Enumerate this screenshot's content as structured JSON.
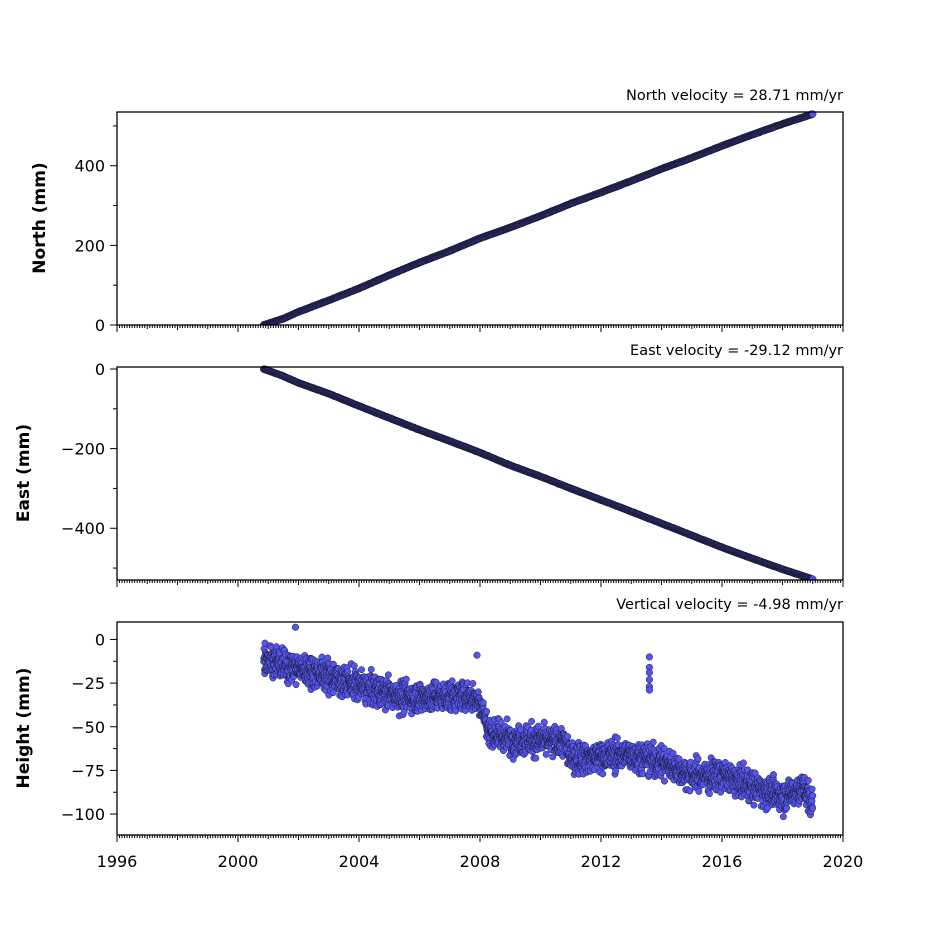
{
  "chart_data": [
    {
      "type": "scatter",
      "title": "North velocity = 28.71 mm/yr",
      "ylabel": "North (mm)",
      "xlim": [
        1996,
        2020
      ],
      "ylim": [
        0,
        535
      ],
      "yticks": [
        0,
        200,
        400
      ],
      "ytick_labels": [
        "0",
        "200",
        "400"
      ],
      "marker_color": "#5555ee",
      "edge_color": "#1a1a33",
      "series": [
        {
          "x": [
            2000.85,
            2001.5,
            2002,
            2003,
            2004,
            2005,
            2006,
            2007,
            2008,
            2009,
            2010,
            2011,
            2012,
            2013,
            2014,
            2015,
            2016,
            2017,
            2018,
            2019.0
          ],
          "y": [
            0,
            16,
            33,
            62,
            92,
            125,
            157,
            186,
            218,
            245,
            274,
            305,
            333,
            362,
            392,
            420,
            450,
            478,
            505,
            530
          ]
        }
      ]
    },
    {
      "type": "scatter",
      "title": "East velocity = -29.12 mm/yr",
      "ylabel": "East (mm)",
      "xlim": [
        1996,
        2020
      ],
      "ylim": [
        -530,
        5
      ],
      "yticks": [
        0,
        -200,
        -400
      ],
      "ytick_labels": [
        "0",
        "−200",
        "−400"
      ],
      "marker_color": "#5555ee",
      "edge_color": "#1a1a33",
      "series": [
        {
          "x": [
            2000.85,
            2001.5,
            2002,
            2003,
            2004,
            2005,
            2006,
            2007,
            2008,
            2009,
            2010,
            2011,
            2012,
            2013,
            2014,
            2015,
            2016,
            2017,
            2018,
            2019.0
          ],
          "y": [
            0,
            -18,
            -35,
            -62,
            -93,
            -123,
            -153,
            -181,
            -210,
            -242,
            -270,
            -300,
            -329,
            -358,
            -388,
            -418,
            -448,
            -476,
            -503,
            -528
          ]
        }
      ]
    },
    {
      "type": "scatter",
      "title": "Vertical velocity = -4.98 mm/yr",
      "ylabel": "Height (mm)",
      "xlim": [
        1996,
        2020
      ],
      "ylim": [
        -112,
        10
      ],
      "yticks": [
        0,
        -25,
        -50,
        -75,
        -100
      ],
      "ytick_labels": [
        "0",
        "−25",
        "−50",
        "−75",
        "−100"
      ],
      "marker_color": "#5555ee",
      "edge_color": "#1a1a33",
      "series": [
        {
          "x": [
            2000.85,
            2001.5,
            2002.5,
            2003.5,
            2004.5,
            2005.5,
            2006.5,
            2007.5,
            2008.0,
            2008.3,
            2009.0,
            2010.0,
            2010.8,
            2011.0,
            2012.0,
            2013.0,
            2014.0,
            2015.0,
            2016.0,
            2017.0,
            2018.0,
            2018.7,
            2019.0
          ],
          "y": [
            -10,
            -15,
            -18,
            -24,
            -29,
            -33,
            -33,
            -32,
            -35,
            -53,
            -57,
            -58,
            -59,
            -68,
            -67,
            -66,
            -70,
            -78,
            -78,
            -84,
            -90,
            -85,
            -95
          ],
          "spread": 8
        },
        {
          "x": [
            2001.9,
            2007.9,
            2013.6,
            2013.6,
            2013.6,
            2013.6,
            2013.6,
            2013.6
          ],
          "y": [
            7,
            -9,
            -10,
            -16,
            -19,
            -23,
            -27,
            -29
          ]
        }
      ]
    }
  ],
  "x_axis": {
    "ticks": [
      1996,
      2000,
      2004,
      2008,
      2012,
      2016,
      2020
    ],
    "tick_labels": [
      "1996",
      "2000",
      "2004",
      "2008",
      "2012",
      "2016",
      "2020"
    ]
  }
}
